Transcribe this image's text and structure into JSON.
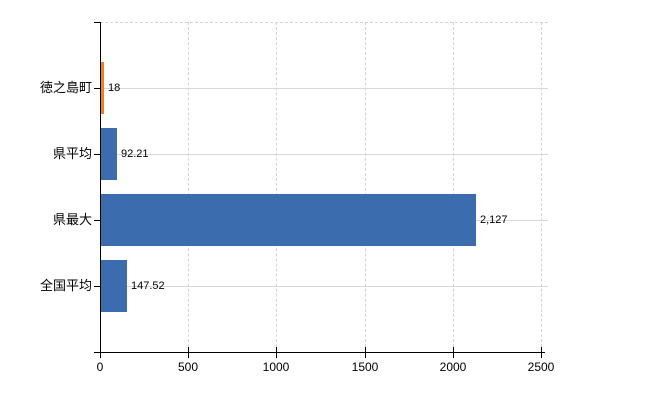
{
  "chart_data": {
    "type": "bar",
    "orientation": "horizontal",
    "title": "",
    "xlabel": "",
    "ylabel": "",
    "categories": [
      "徳之島町",
      "県平均",
      "県最大",
      "全国平均"
    ],
    "values": [
      18,
      92.21,
      2127,
      147.52
    ],
    "value_labels": [
      "18",
      "92.21",
      "2,127",
      "147.52"
    ],
    "bar_colors": [
      "#ee8122",
      "#3b6cae",
      "#3b6cae",
      "#3b6cae"
    ],
    "xlim": [
      0,
      2500
    ],
    "xticks": [
      0,
      500,
      1000,
      1500,
      2000,
      2500
    ],
    "xtick_labels": [
      "0",
      "500",
      "1000",
      "1500",
      "2000",
      "2500"
    ],
    "grid": true,
    "legend": false,
    "colors": {
      "background": "#ffffff",
      "grid": "#d4d4d4",
      "axis": "#000000",
      "text": "#000000"
    }
  }
}
